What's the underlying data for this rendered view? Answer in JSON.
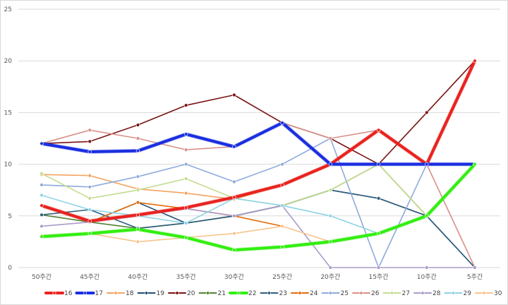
{
  "chart_data": {
    "type": "line",
    "title": "",
    "xlabel": "",
    "ylabel": "",
    "categories": [
      "50주간",
      "45주간",
      "40주간",
      "35주간",
      "30주간",
      "25주간",
      "20주간",
      "15주간",
      "10주간",
      "5주간"
    ],
    "ylim": [
      0,
      25
    ],
    "yticks": [
      0,
      5,
      10,
      15,
      20,
      25
    ],
    "grid": true,
    "legend": "bottom",
    "series": [
      {
        "name": "16",
        "color": "#e8231f",
        "thick": true,
        "values": [
          6,
          4.5,
          5.1,
          5.8,
          6.8,
          8,
          10,
          13.3,
          10,
          20
        ]
      },
      {
        "name": "17",
        "color": "#1a2ee0",
        "thick": true,
        "values": [
          12,
          11.2,
          11.3,
          12.9,
          11.7,
          14,
          10,
          10,
          10,
          10
        ]
      },
      {
        "name": "18",
        "color": "#f4a460",
        "thick": false,
        "values": [
          9,
          8.9,
          7.6,
          7.2,
          6.6,
          8,
          10,
          13.3,
          10,
          20
        ]
      },
      {
        "name": "19",
        "color": "#1f4e79",
        "thick": false,
        "values": [
          6,
          4.4,
          6.3,
          4.3,
          5,
          6,
          7.5,
          6.7,
          5,
          0
        ]
      },
      {
        "name": "20",
        "color": "#7b1414",
        "thick": false,
        "values": [
          12,
          12.2,
          13.8,
          15.7,
          16.7,
          14,
          12.5,
          10,
          15,
          20
        ]
      },
      {
        "name": "21",
        "color": "#548235",
        "thick": false,
        "values": [
          5.1,
          4.4,
          3.8,
          4.3,
          5,
          6,
          7.5,
          10,
          5,
          10
        ]
      },
      {
        "name": "22",
        "color": "#33ee11",
        "thick": true,
        "values": [
          3,
          3.3,
          3.7,
          2.9,
          1.7,
          2,
          2.5,
          3.3,
          5,
          10
        ]
      },
      {
        "name": "23",
        "color": "#2e5d7c",
        "thick": false,
        "values": [
          5.1,
          5.6,
          3.8,
          4.3,
          5,
          6,
          7.5,
          6.7,
          5,
          0
        ]
      },
      {
        "name": "24",
        "color": "#e36c09",
        "thick": false,
        "values": [
          6,
          4.4,
          6.3,
          5.7,
          5,
          4,
          null,
          null,
          null,
          null
        ]
      },
      {
        "name": "25",
        "color": "#8eaadb",
        "thick": false,
        "values": [
          8,
          7.8,
          8.8,
          10,
          8.3,
          10,
          12.5,
          0,
          10,
          10
        ]
      },
      {
        "name": "26",
        "color": "#d9908a",
        "thick": false,
        "values": [
          12,
          13.3,
          12.5,
          11.4,
          11.7,
          14,
          12.5,
          13.3,
          10,
          0
        ]
      },
      {
        "name": "27",
        "color": "#c5dc8f",
        "thick": false,
        "values": [
          9.1,
          6.7,
          7.5,
          8.6,
          6.7,
          6,
          7.5,
          10,
          5,
          10
        ]
      },
      {
        "name": "28",
        "color": "#a99bc9",
        "thick": false,
        "values": [
          4,
          4.4,
          5,
          5.7,
          5,
          6,
          0,
          0,
          0,
          0
        ]
      },
      {
        "name": "29",
        "color": "#8fd3e6",
        "thick": false,
        "values": [
          7,
          5.6,
          5,
          4.3,
          6.7,
          6,
          5,
          3.3,
          null,
          null
        ]
      },
      {
        "name": "30",
        "color": "#f7c48a",
        "thick": false,
        "values": [
          3.1,
          3.3,
          2.5,
          2.9,
          3.3,
          4,
          2.5,
          3.3,
          5,
          null
        ]
      }
    ]
  }
}
